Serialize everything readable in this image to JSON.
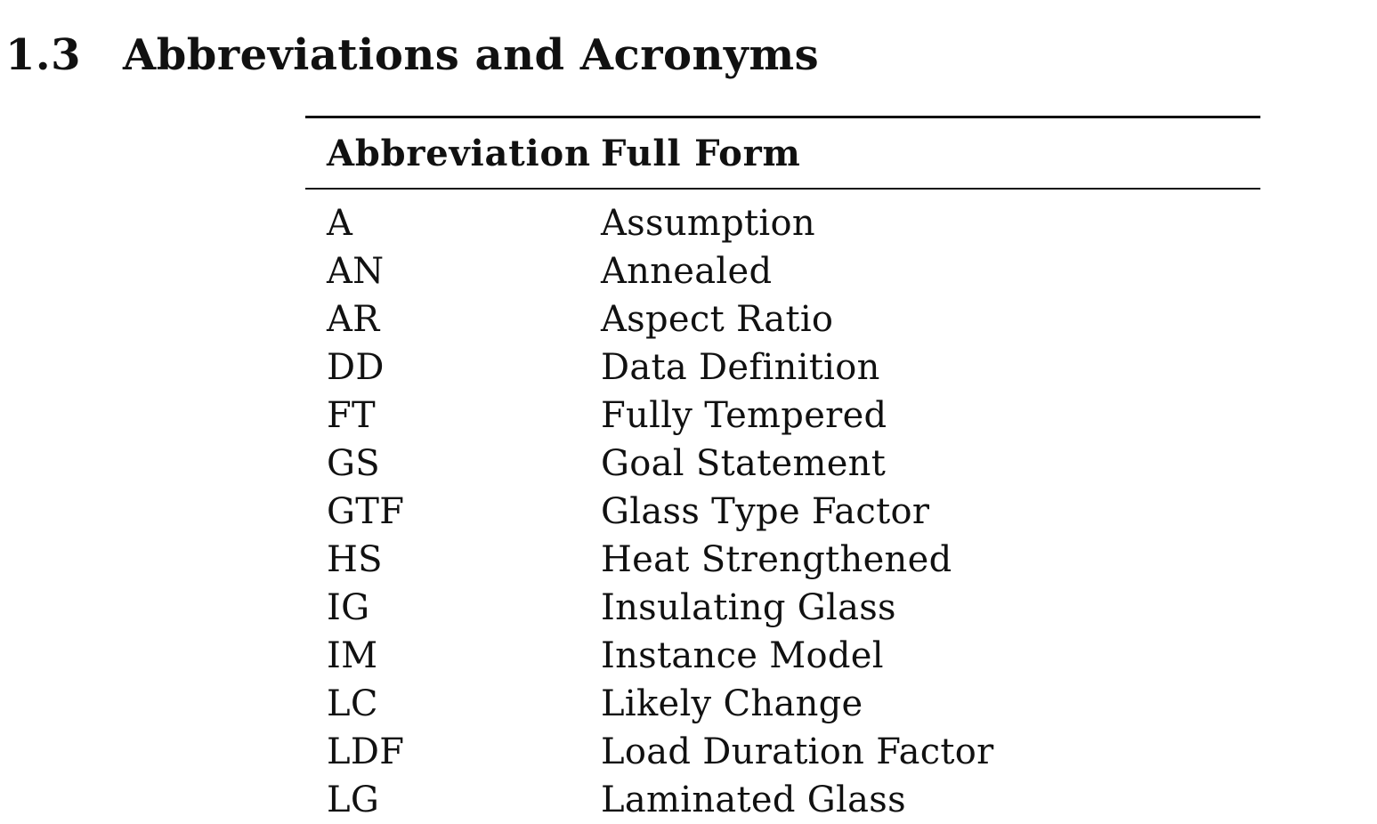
{
  "section": {
    "number": "1.3",
    "title": "Abbreviations and Acronyms"
  },
  "table": {
    "headers": {
      "abbreviation": "Abbreviation",
      "full_form": "Full Form"
    },
    "rows": [
      {
        "abbr": "A",
        "full": "Assumption"
      },
      {
        "abbr": "AN",
        "full": "Annealed"
      },
      {
        "abbr": "AR",
        "full": "Aspect Ratio"
      },
      {
        "abbr": "DD",
        "full": "Data Definition"
      },
      {
        "abbr": "FT",
        "full": "Fully Tempered"
      },
      {
        "abbr": "GS",
        "full": "Goal Statement"
      },
      {
        "abbr": "GTF",
        "full": "Glass Type Factor"
      },
      {
        "abbr": "HS",
        "full": "Heat Strengthened"
      },
      {
        "abbr": "IG",
        "full": "Insulating Glass"
      },
      {
        "abbr": "IM",
        "full": "Instance Model"
      },
      {
        "abbr": "LC",
        "full": "Likely Change"
      },
      {
        "abbr": "LDF",
        "full": "Load Duration Factor"
      },
      {
        "abbr": "LG",
        "full": "Laminated Glass"
      }
    ]
  }
}
